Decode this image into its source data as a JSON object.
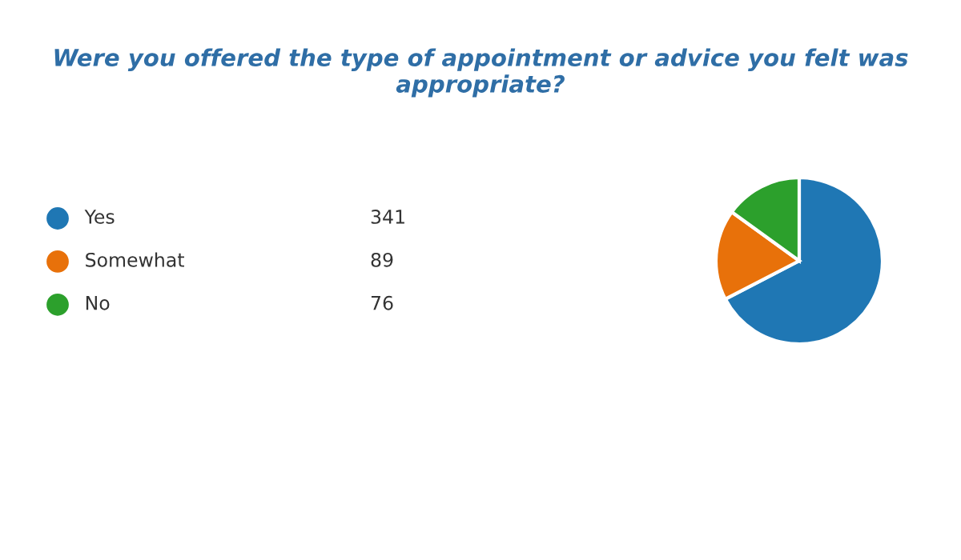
{
  "chart_data": {
    "type": "pie",
    "title": "Were you offered the type of appointment or advice you felt was appropriate?",
    "categories": [
      "Yes",
      "Somewhat",
      "No"
    ],
    "values": [
      341,
      89,
      76
    ],
    "colors": [
      "#1f77b4",
      "#e8710a",
      "#2ca02c"
    ],
    "legend": "left",
    "data_labels": true
  }
}
